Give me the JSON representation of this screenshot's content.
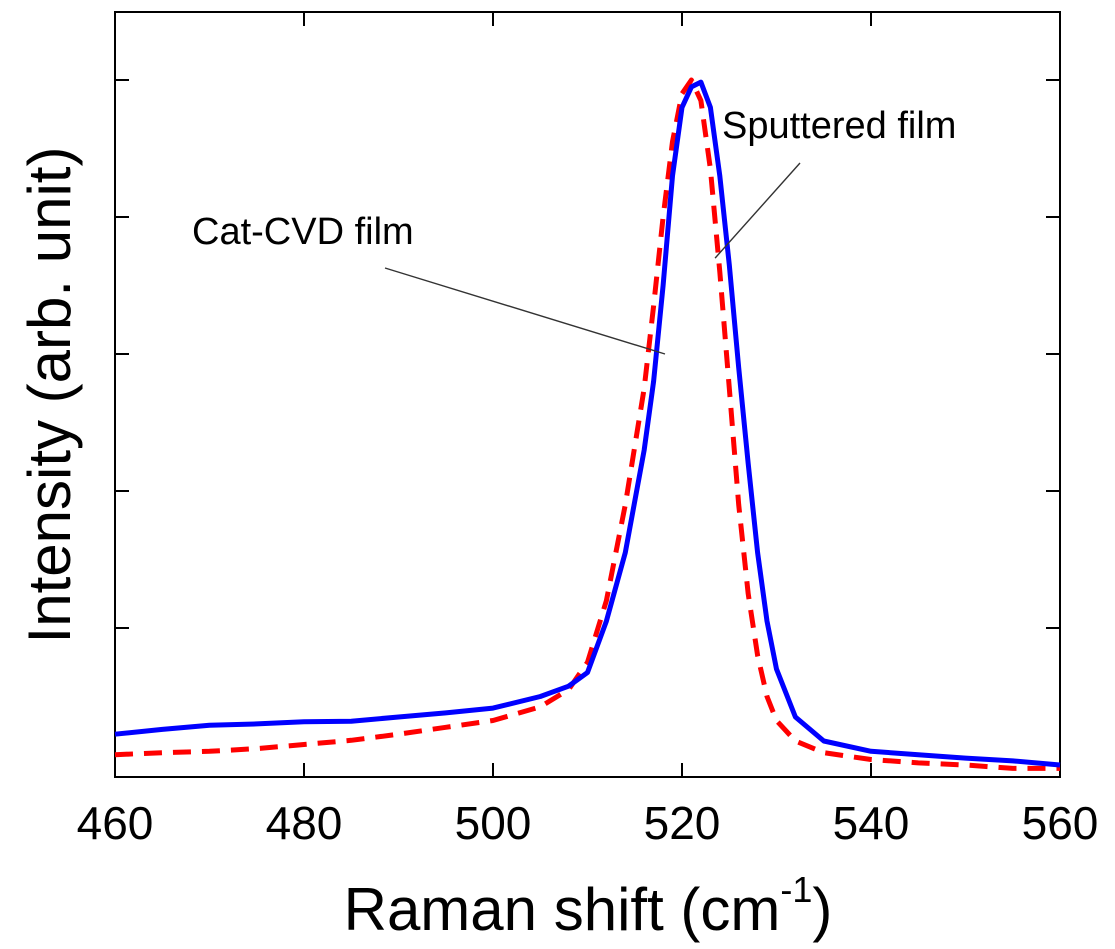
{
  "chart_data": {
    "type": "line",
    "xlabel": "Raman shift (cm",
    "xlabel_superscript": "-1",
    "xlabel_suffix": ")",
    "ylabel": "Intensity (arb. unit)",
    "xlim": [
      460,
      560
    ],
    "ylim": [
      0,
      1
    ],
    "x_ticks": [
      460,
      480,
      500,
      520,
      540,
      560
    ],
    "x_tick_labels": [
      "460",
      "480",
      "500",
      "520",
      "540",
      "560"
    ],
    "y_ticks": [
      0.2,
      0.4,
      0.6,
      0.8,
      1.0
    ],
    "y_tick_labels_visible": false,
    "grid": false,
    "series": [
      {
        "name": "Sputtered film",
        "color": "#0000ff",
        "style": "solid",
        "x": [
          460,
          465,
          470,
          475,
          480,
          485,
          490,
          495,
          500,
          505,
          508,
          510,
          512,
          514,
          516,
          517,
          518,
          519,
          520,
          521,
          522,
          523,
          524,
          525,
          526,
          527,
          528,
          529,
          530,
          532,
          535,
          540,
          545,
          550,
          555,
          560
        ],
        "y": [
          0.045,
          0.052,
          0.058,
          0.06,
          0.063,
          0.064,
          0.07,
          0.076,
          0.083,
          0.1,
          0.115,
          0.135,
          0.21,
          0.31,
          0.46,
          0.56,
          0.7,
          0.86,
          0.96,
          0.99,
          0.997,
          0.96,
          0.86,
          0.73,
          0.58,
          0.44,
          0.31,
          0.21,
          0.14,
          0.07,
          0.035,
          0.02,
          0.015,
          0.01,
          0.006,
          0.0
        ]
      },
      {
        "name": "Cat-CVD film",
        "color": "#ff0000",
        "style": "dashed",
        "x": [
          460,
          465,
          470,
          475,
          480,
          485,
          490,
          495,
          500,
          505,
          508,
          510,
          512,
          514,
          516,
          517,
          518,
          519,
          520,
          521,
          522,
          523,
          524,
          525,
          526,
          527,
          528,
          529,
          530,
          532,
          535,
          540,
          545,
          550,
          555,
          560
        ],
        "y": [
          0.015,
          0.018,
          0.02,
          0.024,
          0.03,
          0.036,
          0.045,
          0.055,
          0.065,
          0.085,
          0.11,
          0.15,
          0.24,
          0.38,
          0.55,
          0.67,
          0.8,
          0.91,
          0.98,
          1.0,
          0.97,
          0.87,
          0.72,
          0.55,
          0.38,
          0.25,
          0.16,
          0.1,
          0.065,
          0.035,
          0.018,
          0.008,
          0.003,
          0.0,
          -0.005,
          -0.005
        ]
      }
    ],
    "annotations": [
      {
        "text": "Sputtered film",
        "target_x": 523.5,
        "target_y": 0.74
      },
      {
        "text": "Cat-CVD film",
        "target_x": 518.2,
        "target_y": 0.6
      }
    ]
  }
}
